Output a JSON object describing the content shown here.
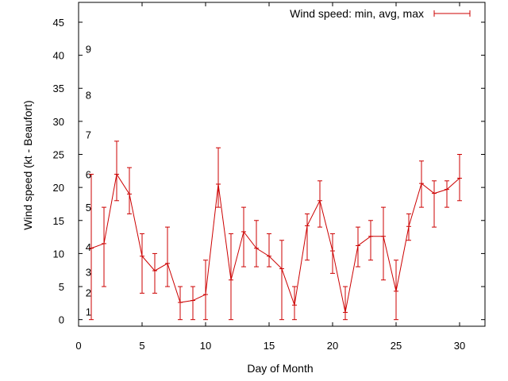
{
  "chart_data": {
    "type": "line",
    "title": "",
    "xlabel": "Day of Month",
    "ylabel": "Wind speed (kt - Beaufort)",
    "xlim": [
      0,
      32
    ],
    "ylim": [
      -1,
      48
    ],
    "xticks": [
      0,
      5,
      10,
      15,
      20,
      25,
      30
    ],
    "yticks": [
      0,
      5,
      10,
      15,
      20,
      25,
      30,
      35,
      40,
      45
    ],
    "grid": false,
    "legend_position": "top-right",
    "series": [
      {
        "name": "Wind speed: min, avg, max",
        "color": "#cc0000",
        "x": [
          1,
          2,
          3,
          4,
          5,
          6,
          7,
          8,
          9,
          10,
          11,
          12,
          13,
          14,
          15,
          16,
          17,
          18,
          19,
          20,
          21,
          22,
          23,
          24,
          25,
          26,
          27,
          28,
          29,
          30
        ],
        "avg": [
          10.8,
          11.5,
          22,
          19,
          9.6,
          7.4,
          8.5,
          2.6,
          2.9,
          3.8,
          20.5,
          6,
          13.3,
          10.8,
          9.6,
          7.7,
          2.2,
          14.2,
          18,
          10.4,
          1.1,
          11.2,
          12.6,
          12.6,
          4.3,
          14.1,
          20.6,
          19.1,
          19.7,
          21.4
        ],
        "min": [
          0,
          5,
          18,
          16,
          4,
          4,
          5,
          0,
          0,
          0,
          17,
          0,
          8,
          8,
          8,
          0,
          0,
          9,
          14,
          7,
          0,
          8,
          9,
          6,
          0,
          12,
          17,
          14,
          17,
          18
        ],
        "max": [
          22,
          17,
          27,
          23,
          13,
          10,
          14,
          5,
          5,
          9,
          26,
          13,
          17,
          15,
          13,
          12,
          5,
          16,
          21,
          13,
          5,
          14,
          15,
          17,
          9,
          16,
          24,
          21,
          21,
          25
        ]
      }
    ],
    "annotations": [
      {
        "text": "1",
        "y": 1.2
      },
      {
        "text": "2",
        "y": 4.1
      },
      {
        "text": "3",
        "y": 7.2
      },
      {
        "text": "4",
        "y": 11
      },
      {
        "text": "5",
        "y": 17
      },
      {
        "text": "6",
        "y": 22
      },
      {
        "text": "7",
        "y": 28
      },
      {
        "text": "8",
        "y": 34
      },
      {
        "text": "9",
        "y": 41
      }
    ]
  }
}
